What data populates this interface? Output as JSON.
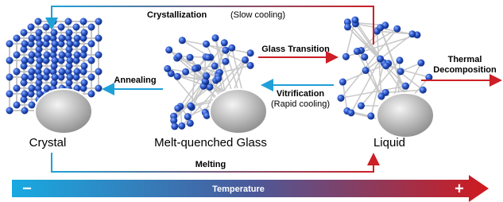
{
  "nodes": [
    {
      "label": "Crystal"
    },
    {
      "label": "Melt-quenched Glass"
    },
    {
      "label": "Liquid"
    }
  ],
  "edges": {
    "crystallization": {
      "label": "Crystallization",
      "note": "(Slow cooling)"
    },
    "glass_transition": {
      "label": "Glass Transition"
    },
    "annealing": {
      "label": "Annealing"
    },
    "vitrification": {
      "label": "Vitrification",
      "note": "(Rapid cooling)"
    },
    "thermal_decomposition": {
      "label": [
        "Thermal",
        "Decomposition"
      ]
    },
    "melting": {
      "label": "Melting"
    }
  },
  "temperature_bar": {
    "label": "Temperature",
    "low": "−",
    "high": "+"
  }
}
